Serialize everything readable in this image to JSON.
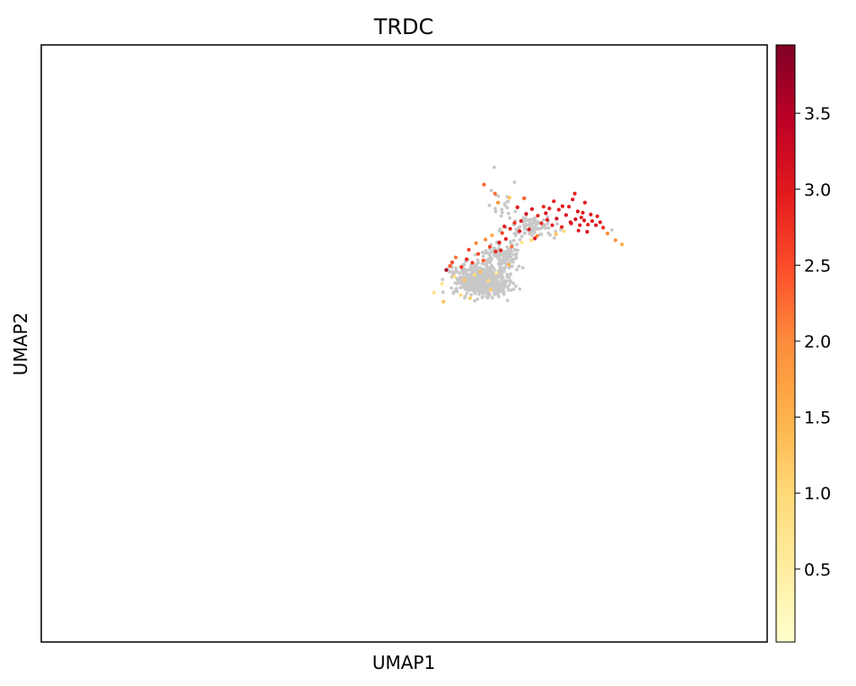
{
  "chart_data": {
    "type": "scatter",
    "title": "TRDC",
    "xlabel": "UMAP1",
    "ylabel": "UMAP2",
    "xlim": [
      0,
      100
    ],
    "ylim": [
      0,
      100
    ],
    "grid": false,
    "show_axis_ticks": false,
    "background_color": "#c8c8c8",
    "colorbar": {
      "colormap": "YlOrRd",
      "range": [
        0.02,
        3.95
      ],
      "ticks": [
        0.5,
        1.0,
        1.5,
        2.0,
        2.5,
        3.0,
        3.5
      ],
      "tick_labels": [
        "0.5",
        "1.0",
        "1.5",
        "2.0",
        "2.5",
        "3.0",
        "3.5"
      ],
      "stops": [
        "#ffffcc",
        "#ffeda0",
        "#fed976",
        "#feb24c",
        "#fd8d3c",
        "#fc4e2a",
        "#e31a1c",
        "#bd0026",
        "#800026"
      ]
    },
    "expressed_points": [
      {
        "x": 63.5,
        "y": 68.5,
        "v": 2.6
      },
      {
        "x": 64.8,
        "y": 66.2,
        "v": 2.2
      },
      {
        "x": 66.1,
        "y": 70.5,
        "v": 2.9
      },
      {
        "x": 67.2,
        "y": 69.1,
        "v": 3.1
      },
      {
        "x": 68.0,
        "y": 67.6,
        "v": 3.0
      },
      {
        "x": 68.9,
        "y": 70.1,
        "v": 2.8
      },
      {
        "x": 69.5,
        "y": 71.8,
        "v": 3.2
      },
      {
        "x": 70.4,
        "y": 69.8,
        "v": 3.0
      },
      {
        "x": 71.0,
        "y": 70.9,
        "v": 3.3
      },
      {
        "x": 71.7,
        "y": 69.5,
        "v": 2.9
      },
      {
        "x": 72.3,
        "y": 71.5,
        "v": 3.1
      },
      {
        "x": 72.9,
        "y": 70.3,
        "v": 3.0
      },
      {
        "x": 73.6,
        "y": 70.8,
        "v": 3.2
      },
      {
        "x": 74.2,
        "y": 69.8,
        "v": 3.0
      },
      {
        "x": 74.8,
        "y": 70.6,
        "v": 3.1
      },
      {
        "x": 75.3,
        "y": 69.9,
        "v": 2.9
      },
      {
        "x": 75.9,
        "y": 70.5,
        "v": 3.0
      },
      {
        "x": 76.4,
        "y": 69.8,
        "v": 3.1
      },
      {
        "x": 77.0,
        "y": 70.3,
        "v": 3.0
      },
      {
        "x": 70.0,
        "y": 72.6,
        "v": 3.0
      },
      {
        "x": 71.3,
        "y": 72.4,
        "v": 2.9
      },
      {
        "x": 72.7,
        "y": 72.9,
        "v": 3.0
      },
      {
        "x": 73.9,
        "y": 72.1,
        "v": 3.1
      },
      {
        "x": 74.6,
        "y": 71.9,
        "v": 3.0
      },
      {
        "x": 75.7,
        "y": 71.6,
        "v": 3.0
      },
      {
        "x": 76.6,
        "y": 71.3,
        "v": 2.9
      },
      {
        "x": 73.2,
        "y": 74.1,
        "v": 3.1
      },
      {
        "x": 74.9,
        "y": 73.6,
        "v": 3.0
      },
      {
        "x": 70.6,
        "y": 73.8,
        "v": 2.9
      },
      {
        "x": 69.2,
        "y": 72.9,
        "v": 2.8
      },
      {
        "x": 68.4,
        "y": 71.4,
        "v": 2.9
      },
      {
        "x": 67.6,
        "y": 72.5,
        "v": 3.0
      },
      {
        "x": 66.8,
        "y": 71.7,
        "v": 3.2
      },
      {
        "x": 65.9,
        "y": 68.8,
        "v": 3.0
      },
      {
        "x": 65.2,
        "y": 70.2,
        "v": 2.7
      },
      {
        "x": 64.0,
        "y": 67.5,
        "v": 2.9
      },
      {
        "x": 63.1,
        "y": 66.9,
        "v": 3.0
      },
      {
        "x": 62.6,
        "y": 65.4,
        "v": 2.8
      },
      {
        "x": 61.8,
        "y": 66.2,
        "v": 2.6
      },
      {
        "x": 60.9,
        "y": 63.9,
        "v": 2.4
      },
      {
        "x": 60.2,
        "y": 65.0,
        "v": 2.5
      },
      {
        "x": 59.4,
        "y": 63.5,
        "v": 2.7
      },
      {
        "x": 58.6,
        "y": 64.1,
        "v": 2.9
      },
      {
        "x": 57.9,
        "y": 62.8,
        "v": 2.6
      },
      {
        "x": 57.1,
        "y": 64.4,
        "v": 2.2
      },
      {
        "x": 56.3,
        "y": 63.0,
        "v": 2.4
      },
      {
        "x": 55.8,
        "y": 62.3,
        "v": 3.6
      },
      {
        "x": 61.2,
        "y": 67.4,
        "v": 2.0
      },
      {
        "x": 62.1,
        "y": 68.1,
        "v": 1.6
      },
      {
        "x": 63.8,
        "y": 69.6,
        "v": 3.0
      },
      {
        "x": 65.6,
        "y": 72.8,
        "v": 3.0
      },
      {
        "x": 66.5,
        "y": 74.3,
        "v": 2.3
      },
      {
        "x": 64.5,
        "y": 74.4,
        "v": 1.2
      },
      {
        "x": 62.5,
        "y": 75.1,
        "v": 2.2
      },
      {
        "x": 61.0,
        "y": 76.6,
        "v": 2.3
      },
      {
        "x": 62.9,
        "y": 73.6,
        "v": 1.8
      },
      {
        "x": 68.3,
        "y": 68.0,
        "v": 2.0
      },
      {
        "x": 70.9,
        "y": 68.3,
        "v": 1.3
      },
      {
        "x": 72.0,
        "y": 68.8,
        "v": 0.9
      },
      {
        "x": 67.5,
        "y": 67.3,
        "v": 1.0
      },
      {
        "x": 66.2,
        "y": 66.9,
        "v": 0.7
      },
      {
        "x": 64.4,
        "y": 63.2,
        "v": 1.5
      },
      {
        "x": 60.5,
        "y": 62.0,
        "v": 1.4
      },
      {
        "x": 58.3,
        "y": 60.6,
        "v": 1.3
      },
      {
        "x": 56.9,
        "y": 61.2,
        "v": 0.8
      },
      {
        "x": 59.7,
        "y": 61.5,
        "v": 0.9
      },
      {
        "x": 61.6,
        "y": 60.5,
        "v": 1.0
      },
      {
        "x": 62.7,
        "y": 61.8,
        "v": 0.6
      },
      {
        "x": 55.2,
        "y": 60.0,
        "v": 0.7
      },
      {
        "x": 54.1,
        "y": 58.5,
        "v": 0.8
      },
      {
        "x": 57.8,
        "y": 58.1,
        "v": 0.9
      },
      {
        "x": 55.4,
        "y": 57.0,
        "v": 1.3
      },
      {
        "x": 59.1,
        "y": 57.6,
        "v": 1.1
      },
      {
        "x": 61.9,
        "y": 59.0,
        "v": 1.2
      },
      {
        "x": 56.6,
        "y": 63.6,
        "v": 2.5
      },
      {
        "x": 58.9,
        "y": 65.7,
        "v": 2.6
      },
      {
        "x": 59.9,
        "y": 66.8,
        "v": 2.0
      },
      {
        "x": 77.4,
        "y": 69.4,
        "v": 2.8
      },
      {
        "x": 78.0,
        "y": 68.4,
        "v": 2.0
      },
      {
        "x": 79.1,
        "y": 67.3,
        "v": 1.9
      },
      {
        "x": 80.0,
        "y": 66.6,
        "v": 1.5
      },
      {
        "x": 73.5,
        "y": 75.1,
        "v": 2.9
      },
      {
        "x": 71.8,
        "y": 73.0,
        "v": 3.0
      },
      {
        "x": 73.0,
        "y": 70.1,
        "v": 3.1
      },
      {
        "x": 74.0,
        "y": 68.9,
        "v": 3.0
      },
      {
        "x": 75.2,
        "y": 68.7,
        "v": 3.1
      },
      {
        "x": 69.7,
        "y": 70.7,
        "v": 3.0
      },
      {
        "x": 64.6,
        "y": 69.2,
        "v": 2.9
      },
      {
        "x": 63.3,
        "y": 65.6,
        "v": 2.9
      },
      {
        "x": 74.4,
        "y": 71.1,
        "v": 2.9
      }
    ]
  }
}
